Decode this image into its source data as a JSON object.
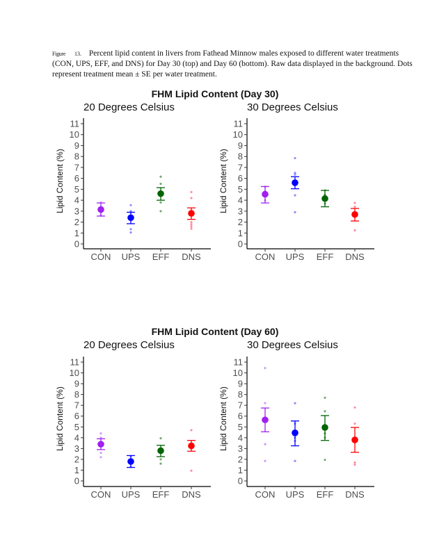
{
  "caption": {
    "figure_label": "Figure",
    "figure_number": "13.",
    "text": "Percent lipid content in livers from Fathead Minnow males exposed to different water treatments (CON, UPS, EFF, and DNS) for Day 30 (top) and Day 60 (bottom). Raw data displayed in the background. Dots represent treatment mean ± SE per water treatment."
  },
  "colors": {
    "CON": "#a020f0",
    "UPS": "#0000ff",
    "EFF": "#006400",
    "DNS": "#ff0000"
  },
  "chart_data": [
    {
      "type": "scatter",
      "title": "FHM Lipid Content (Day 30)",
      "subtitle": "20 Degrees Celsius",
      "xlabel": "",
      "ylabel": "Lipid Content (%)",
      "ylim": [
        0,
        11
      ],
      "yticks": [
        "0",
        "1",
        "2",
        "3",
        "4",
        "5",
        "6",
        "7",
        "8",
        "9",
        "10",
        "11"
      ],
      "grid": false,
      "categories": [
        "CON",
        "UPS",
        "EFF",
        "DNS"
      ],
      "means": [
        3.15,
        2.4,
        4.6,
        2.8
      ],
      "se_low": [
        2.55,
        1.85,
        4.0,
        2.25
      ],
      "se_high": [
        3.75,
        2.9,
        5.15,
        3.3
      ],
      "raw": [
        [
          2.6,
          2.9,
          3.3,
          3.8
        ],
        [
          1.05,
          1.35,
          2.9,
          3.0,
          3.55
        ],
        [
          3.0,
          3.8,
          5.5,
          6.15
        ],
        [
          1.4,
          1.6,
          1.8,
          2.0,
          4.2,
          4.75
        ]
      ]
    },
    {
      "type": "scatter",
      "title": "FHM Lipid Content (Day 30)",
      "subtitle": "30 Degrees Celsius",
      "xlabel": "",
      "ylabel": "Lipid Content (%)",
      "ylim": [
        0,
        11
      ],
      "yticks": [
        "0",
        "1",
        "2",
        "3",
        "4",
        "5",
        "6",
        "7",
        "8",
        "9",
        "10",
        "11"
      ],
      "grid": false,
      "categories": [
        "CON",
        "UPS",
        "EFF",
        "DNS"
      ],
      "means": [
        4.55,
        5.6,
        4.15,
        2.7
      ],
      "se_low": [
        3.75,
        5.05,
        3.4,
        2.1
      ],
      "se_high": [
        5.25,
        6.15,
        4.9,
        3.25
      ],
      "raw": [
        [
          4.0,
          4.8,
          5.25
        ],
        [
          2.9,
          4.45,
          6.35,
          6.5,
          7.85
        ],
        [
          3.7,
          4.5,
          4.9
        ],
        [
          1.25,
          3.4,
          3.75
        ]
      ]
    },
    {
      "type": "scatter",
      "title": "FHM Lipid Content (Day 60)",
      "subtitle": "20 Degrees Celsius",
      "xlabel": "",
      "ylabel": "Lipid Content (%)",
      "ylim": [
        0,
        11
      ],
      "yticks": [
        "0",
        "1",
        "2",
        "3",
        "4",
        "5",
        "6",
        "7",
        "8",
        "9",
        "10",
        "11"
      ],
      "grid": false,
      "categories": [
        "CON",
        "UPS",
        "EFF",
        "DNS"
      ],
      "means": [
        3.4,
        1.8,
        2.8,
        3.25
      ],
      "se_low": [
        2.9,
        1.25,
        2.25,
        2.75
      ],
      "se_high": [
        3.9,
        2.35,
        3.3,
        3.75
      ],
      "raw": [
        [
          2.2,
          2.6,
          3.6,
          4.0,
          4.4
        ],
        [
          1.3,
          2.3
        ],
        [
          1.6,
          2.0,
          3.95
        ],
        [
          0.95,
          3.0,
          4.7
        ]
      ]
    },
    {
      "type": "scatter",
      "title": "FHM Lipid Content (Day 60)",
      "subtitle": "30 Degrees Celsius",
      "xlabel": "",
      "ylabel": "Lipid Content (%)",
      "ylim": [
        0,
        11
      ],
      "yticks": [
        "0",
        "1",
        "2",
        "3",
        "4",
        "5",
        "6",
        "7",
        "8",
        "9",
        "10",
        "11"
      ],
      "grid": false,
      "categories": [
        "CON",
        "UPS",
        "EFF",
        "DNS"
      ],
      "means": [
        5.65,
        4.45,
        4.95,
        3.8
      ],
      "se_low": [
        4.55,
        3.25,
        3.75,
        2.65
      ],
      "se_high": [
        6.75,
        5.55,
        6.05,
        4.95
      ],
      "raw": [
        [
          1.85,
          3.4,
          7.2,
          10.45
        ],
        [
          1.85,
          3.7,
          4.0,
          5.3,
          7.2
        ],
        [
          1.95,
          4.0,
          4.4,
          6.45,
          7.7
        ],
        [
          1.5,
          1.7,
          5.3,
          6.8
        ]
      ]
    }
  ]
}
